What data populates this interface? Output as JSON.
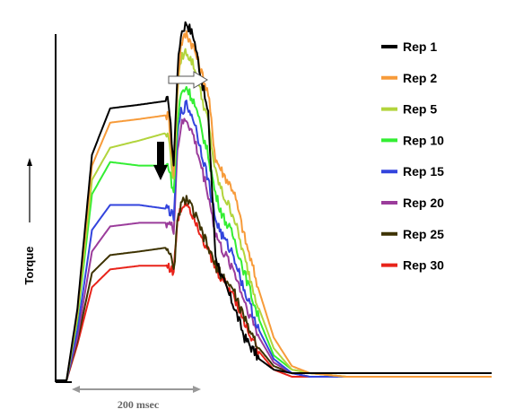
{
  "chart_data": {
    "type": "line",
    "title": "",
    "xlabel": "",
    "ylabel": "Torque",
    "scale_bar_label": "200 msec",
    "grid": false,
    "legend_position": "right",
    "x_unit": "msec",
    "x": [
      0,
      30,
      60,
      100,
      150,
      230,
      300,
      311,
      325,
      335,
      345,
      360,
      380,
      420,
      440,
      460,
      490,
      520,
      560,
      600,
      650,
      700,
      800,
      1000,
      1200
    ],
    "series": [
      {
        "name": "Rep 1",
        "color": "#000000",
        "values": [
          0.0,
          0.0,
          0.2,
          0.63,
          0.76,
          0.77,
          0.78,
          0.78,
          0.6,
          0.86,
          0.97,
          1.0,
          0.96,
          0.74,
          0.35,
          0.28,
          0.21,
          0.12,
          0.06,
          0.03,
          0.02,
          0.02,
          0.02,
          0.02,
          0.02
        ]
      },
      {
        "name": "Rep 2",
        "color": "#f79b3a",
        "values": [
          0.0,
          0.0,
          0.19,
          0.6,
          0.72,
          0.73,
          0.74,
          0.74,
          0.58,
          0.82,
          0.94,
          0.97,
          0.93,
          0.8,
          0.62,
          0.58,
          0.53,
          0.4,
          0.25,
          0.12,
          0.04,
          0.02,
          0.01,
          0.01,
          0.01
        ]
      },
      {
        "name": "Rep 5",
        "color": "#b2d43c",
        "values": [
          0.0,
          0.0,
          0.18,
          0.56,
          0.65,
          0.67,
          0.69,
          0.68,
          0.55,
          0.8,
          0.9,
          0.92,
          0.88,
          0.72,
          0.58,
          0.52,
          0.46,
          0.34,
          0.2,
          0.09,
          0.03,
          0.02,
          0.01,
          0.01,
          0.01
        ]
      },
      {
        "name": "Rep 10",
        "color": "#33ee33",
        "values": [
          0.0,
          0.0,
          0.17,
          0.52,
          0.61,
          0.6,
          0.6,
          0.6,
          0.52,
          0.72,
          0.8,
          0.82,
          0.78,
          0.63,
          0.52,
          0.46,
          0.4,
          0.3,
          0.17,
          0.07,
          0.03,
          0.02,
          0.01,
          0.01,
          0.01
        ]
      },
      {
        "name": "Rep 15",
        "color": "#3344dd",
        "values": [
          0.0,
          0.0,
          0.14,
          0.42,
          0.49,
          0.49,
          0.48,
          0.48,
          0.45,
          0.68,
          0.75,
          0.77,
          0.73,
          0.56,
          0.45,
          0.4,
          0.35,
          0.25,
          0.14,
          0.06,
          0.02,
          0.01,
          0.01,
          0.01,
          0.01
        ]
      },
      {
        "name": "Rep 20",
        "color": "#9b3c9b",
        "values": [
          0.0,
          0.0,
          0.12,
          0.36,
          0.43,
          0.44,
          0.44,
          0.44,
          0.42,
          0.64,
          0.71,
          0.73,
          0.68,
          0.52,
          0.41,
          0.36,
          0.31,
          0.22,
          0.12,
          0.05,
          0.02,
          0.01,
          0.01,
          0.01,
          0.01
        ]
      },
      {
        "name": "Rep 25",
        "color": "#3d3200",
        "values": [
          0.0,
          0.0,
          0.11,
          0.3,
          0.35,
          0.36,
          0.37,
          0.37,
          0.3,
          0.44,
          0.49,
          0.51,
          0.47,
          0.37,
          0.32,
          0.29,
          0.25,
          0.17,
          0.09,
          0.04,
          0.02,
          0.01,
          0.01,
          0.01,
          0.01
        ]
      },
      {
        "name": "Rep 30",
        "color": "#e8231a",
        "values": [
          0.0,
          0.0,
          0.1,
          0.26,
          0.31,
          0.32,
          0.32,
          0.32,
          0.3,
          0.44,
          0.48,
          0.5,
          0.46,
          0.36,
          0.31,
          0.28,
          0.24,
          0.16,
          0.08,
          0.03,
          0.01,
          0.01,
          0.01,
          0.01,
          0.01
        ]
      }
    ]
  }
}
